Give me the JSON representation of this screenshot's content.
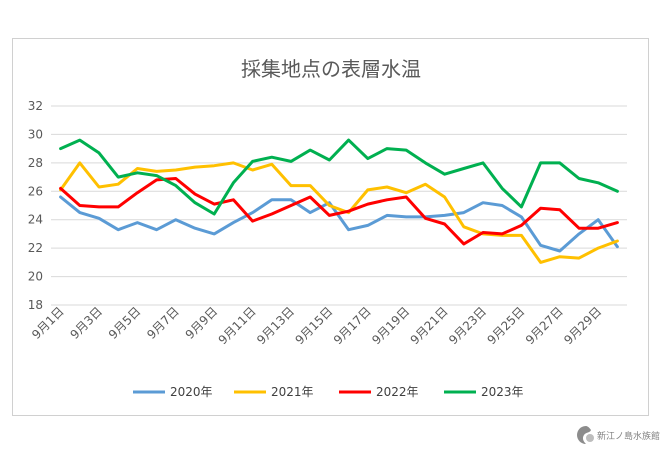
{
  "chart_data": {
    "type": "line",
    "title": "採集地点の表層水温",
    "xlabel": "",
    "ylabel": "",
    "ylim": [
      18,
      32
    ],
    "yticks": [
      18,
      20,
      22,
      24,
      26,
      28,
      30,
      32
    ],
    "grid": true,
    "legend_position": "bottom",
    "x": [
      "9月1日",
      "9月2日",
      "9月3日",
      "9月4日",
      "9月5日",
      "9月6日",
      "9月7日",
      "9月8日",
      "9月9日",
      "9月10日",
      "9月11日",
      "9月12日",
      "9月13日",
      "9月14日",
      "9月15日",
      "9月16日",
      "9月17日",
      "9月18日",
      "9月19日",
      "9月20日",
      "9月21日",
      "9月22日",
      "9月23日",
      "9月24日",
      "9月25日",
      "9月26日",
      "9月27日",
      "9月28日",
      "9月29日",
      "9月30日"
    ],
    "xtick_labels": [
      "9月1日",
      "9月3日",
      "9月5日",
      "9月7日",
      "9月9日",
      "9月11日",
      "9月13日",
      "9月15日",
      "9月17日",
      "9月19日",
      "9月21日",
      "9月23日",
      "9月25日",
      "9月27日",
      "9月29日"
    ],
    "series": [
      {
        "name": "2020年",
        "color": "#5b9bd5",
        "values": [
          25.6,
          24.5,
          24.1,
          23.3,
          23.8,
          23.3,
          24.0,
          23.4,
          23.0,
          23.8,
          24.5,
          25.4,
          25.4,
          24.5,
          25.2,
          23.3,
          23.6,
          24.3,
          24.2,
          24.2,
          24.3,
          24.5,
          25.2,
          25.0,
          24.2,
          22.2,
          21.8,
          23.0,
          24.0,
          22.1
        ]
      },
      {
        "name": "2021年",
        "color": "#ffc000",
        "values": [
          26.1,
          28.0,
          26.3,
          26.5,
          27.6,
          27.4,
          27.5,
          27.7,
          27.8,
          28.0,
          27.5,
          27.9,
          26.4,
          26.4,
          25.0,
          24.5,
          26.1,
          26.3,
          25.9,
          26.5,
          25.6,
          23.5,
          23.0,
          22.9,
          22.9,
          21.0,
          21.4,
          21.3,
          22.0,
          22.5
        ]
      },
      {
        "name": "2022年",
        "color": "#ff0000",
        "values": [
          26.2,
          25.0,
          24.9,
          24.9,
          25.9,
          26.8,
          26.9,
          25.8,
          25.1,
          25.4,
          23.9,
          24.4,
          25.0,
          25.6,
          24.3,
          24.6,
          25.1,
          25.4,
          25.6,
          24.1,
          23.7,
          22.3,
          23.1,
          23.0,
          23.6,
          24.8,
          24.7,
          23.4,
          23.4,
          23.8
        ]
      },
      {
        "name": "2023年",
        "color": "#00b050",
        "values": [
          29.0,
          29.6,
          28.7,
          27.0,
          27.3,
          27.1,
          26.4,
          25.2,
          24.4,
          26.6,
          28.1,
          28.4,
          28.1,
          28.9,
          28.2,
          29.6,
          28.3,
          29.0,
          28.9,
          28.0,
          27.2,
          27.6,
          28.0,
          26.2,
          24.9,
          28.0,
          28.0,
          26.9,
          26.6,
          26.0
        ]
      }
    ]
  },
  "watermark": {
    "text": "新江ノ島水族館"
  }
}
